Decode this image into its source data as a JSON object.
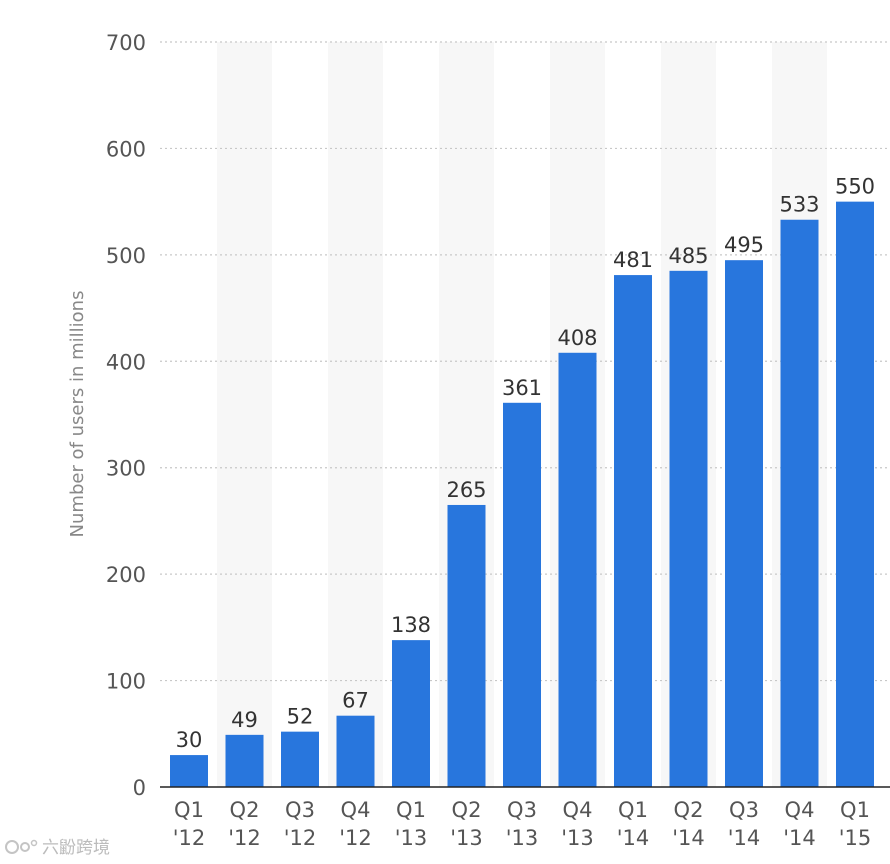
{
  "chart_data": {
    "type": "bar",
    "categories": [
      "Q1 '12",
      "Q2 '12",
      "Q3 '12",
      "Q4 '12",
      "Q1 '13",
      "Q2 '13",
      "Q3 '13",
      "Q4 '13",
      "Q1 '14",
      "Q2 '14",
      "Q3 '14",
      "Q4 '14",
      "Q1 '15"
    ],
    "values": [
      30,
      49,
      52,
      67,
      138,
      265,
      361,
      408,
      481,
      485,
      495,
      533,
      550
    ],
    "title": "",
    "xlabel": "",
    "ylabel": "Number of users in millions",
    "ylim": [
      0,
      700
    ],
    "yticks": [
      0,
      100,
      200,
      300,
      400,
      500,
      600,
      700
    ],
    "grid": true,
    "bar_color": "#2876dd",
    "stripe_color": "#f7f7f7"
  },
  "watermark": {
    "text": "六鼢跨境"
  }
}
